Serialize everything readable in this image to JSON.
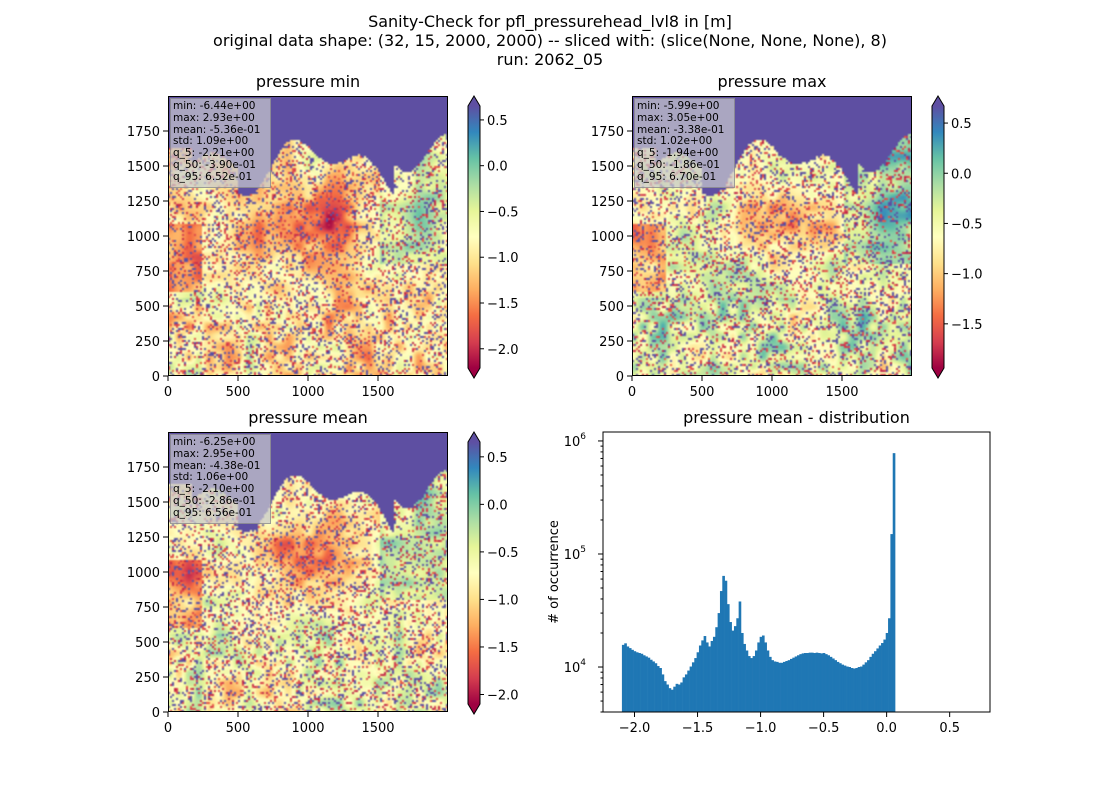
{
  "figure": {
    "title_lines": [
      "Sanity-Check for pfl_pressurehead_lvl8 in [m]",
      "original data shape: (32, 15, 2000, 2000) -- sliced with: (slice(None, None, None), 8)",
      "run: 2062_05"
    ]
  },
  "maps": [
    {
      "title": "pressure min",
      "stats": [
        "min: -6.44e+00",
        "max: 2.93e+00",
        "mean: -5.36e-01",
        "std: 1.09e+00",
        "q_5: -2.21e+00",
        "q_50: -3.90e-01",
        "q_95: 6.52e-01"
      ],
      "x_ticks": [
        "0",
        "500",
        "1000",
        "1500"
      ],
      "y_ticks": [
        "0",
        "250",
        "500",
        "750",
        "1000",
        "1250",
        "1500",
        "1750"
      ],
      "colorbar": {
        "vmin": -2.21,
        "vmax": 0.652,
        "ticks": [
          "0.5",
          "0.0",
          "−0.5",
          "−1.0",
          "−1.5",
          "−2.0"
        ],
        "tick_values": [
          0.5,
          0.0,
          -0.5,
          -1.0,
          -1.5,
          -2.0
        ]
      }
    },
    {
      "title": "pressure max",
      "stats": [
        "min: -5.99e+00",
        "max: 3.05e+00",
        "mean: -3.38e-01",
        "std: 1.02e+00",
        "q_5: -1.94e+00",
        "q_50: -1.86e-01",
        "q_95: 6.70e-01"
      ],
      "x_ticks": [
        "0",
        "500",
        "1000",
        "1500"
      ],
      "y_ticks": [
        "0",
        "250",
        "500",
        "750",
        "1000",
        "1250",
        "1500",
        "1750"
      ],
      "colorbar": {
        "vmin": -1.94,
        "vmax": 0.67,
        "ticks": [
          "0.5",
          "0.0",
          "−0.5",
          "−1.0",
          "−1.5"
        ],
        "tick_values": [
          0.5,
          0.0,
          -0.5,
          -1.0,
          -1.5
        ]
      }
    },
    {
      "title": "pressure mean",
      "stats": [
        "min: -6.25e+00",
        "max: 2.95e+00",
        "mean: -4.38e-01",
        "std: 1.06e+00",
        "q_5: -2.10e+00",
        "q_50: -2.86e-01",
        "q_95: 6.56e-01"
      ],
      "x_ticks": [
        "0",
        "500",
        "1000",
        "1500"
      ],
      "y_ticks": [
        "0",
        "250",
        "500",
        "750",
        "1000",
        "1250",
        "1500",
        "1750"
      ],
      "colorbar": {
        "vmin": -2.1,
        "vmax": 0.656,
        "ticks": [
          "0.5",
          "0.0",
          "−0.5",
          "−1.0",
          "−1.5",
          "−2.0"
        ],
        "tick_values": [
          0.5,
          0.0,
          -0.5,
          -1.0,
          -1.5,
          -2.0
        ]
      }
    }
  ],
  "chart_data": {
    "type": "bar",
    "title": "pressure mean - distribution",
    "xlabel": "",
    "ylabel": "# of occurrence",
    "xlim": [
      -2.25,
      0.82
    ],
    "ylim": [
      4000,
      1200000
    ],
    "yscale": "log",
    "x_ticks": [
      {
        "value": -2.0,
        "label": "−2.0"
      },
      {
        "value": -1.5,
        "label": "−1.5"
      },
      {
        "value": -1.0,
        "label": "−1.0"
      },
      {
        "value": -0.5,
        "label": "−0.5"
      },
      {
        "value": 0.0,
        "label": "0.0"
      },
      {
        "value": 0.5,
        "label": "0.5"
      }
    ],
    "y_ticks": [
      {
        "value": 10000,
        "base": "10",
        "exp": "4"
      },
      {
        "value": 100000,
        "base": "10",
        "exp": "5"
      },
      {
        "value": 1000000,
        "base": "10",
        "exp": "6"
      }
    ],
    "bin_start": -2.1,
    "bin_width": 0.01852,
    "values": [
      15700,
      16200,
      15200,
      14700,
      14200,
      13800,
      13500,
      13300,
      13100,
      12700,
      12400,
      12100,
      11600,
      11200,
      10800,
      10200,
      9800,
      8600,
      7500,
      7000,
      6500,
      6300,
      6700,
      7100,
      7000,
      7300,
      8100,
      8600,
      9300,
      10100,
      11000,
      12000,
      13500,
      15500,
      17200,
      18800,
      16500,
      15200,
      17000,
      18500,
      22500,
      30000,
      47000,
      64000,
      58000,
      36000,
      25000,
      21000,
      23000,
      27000,
      38000,
      20000,
      16000,
      14000,
      12500,
      12000,
      12500,
      14000,
      16500,
      18500,
      19000,
      16500,
      14000,
      12300,
      11500,
      11200,
      11100,
      10900,
      10900,
      11100,
      11300,
      11500,
      11800,
      12100,
      12400,
      12700,
      13000,
      13200,
      13300,
      13300,
      13400,
      13400,
      13300,
      13400,
      13300,
      13200,
      13300,
      13000,
      12700,
      12300,
      11900,
      11500,
      11100,
      10800,
      10500,
      10300,
      10100,
      10000,
      9800,
      9700,
      9800,
      10000,
      10100,
      10500,
      11000,
      11500,
      12300,
      13100,
      13800,
      14600,
      15500,
      16300,
      17500,
      20000,
      27000,
      150000,
      780000
    ]
  }
}
